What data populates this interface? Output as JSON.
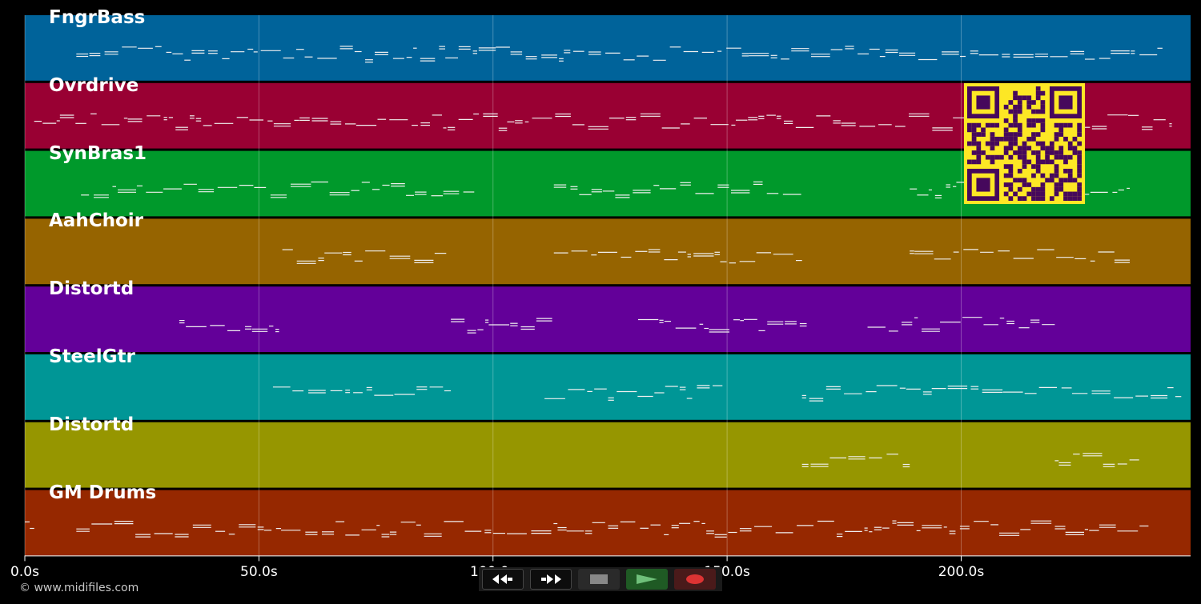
{
  "tracks": [
    {
      "name": "FngrBass",
      "color": "#00639a"
    },
    {
      "name": "Ovrdrive",
      "color": "#990033"
    },
    {
      "name": "SynBras1",
      "color": "#00992b"
    },
    {
      "name": "AahChoir",
      "color": "#966400"
    },
    {
      "name": "Distortd",
      "color": "#630099"
    },
    {
      "name": "SteelGtr",
      "color": "#009696"
    },
    {
      "name": "Distortd",
      "color": "#969600"
    },
    {
      "name": "GM Drums",
      "color": "#962800"
    }
  ],
  "axis": {
    "ticks": [
      {
        "label": "0.0s",
        "value": 0
      },
      {
        "label": "50.0s",
        "value": 50
      },
      {
        "label": "100.0s",
        "value": 100
      },
      {
        "label": "150.0s",
        "value": 150
      },
      {
        "label": "200.0s",
        "value": 200
      }
    ],
    "max_seconds": 249
  },
  "copyright": "© www.midifiles.com",
  "transport": {
    "rewind_icon": "rewind-icon",
    "fast_forward_icon": "fast-forward-icon",
    "stop_icon": "stop-icon",
    "play_icon": "play-icon",
    "record_icon": "record-icon"
  },
  "note_activity": [
    [
      [
        11,
        243
      ]
    ],
    [
      [
        2,
        245
      ]
    ],
    [
      [
        12,
        96
      ],
      [
        113,
        166
      ],
      [
        189,
        236
      ]
    ],
    [
      [
        55,
        90
      ],
      [
        113,
        166
      ],
      [
        189,
        236
      ]
    ],
    [
      [
        33,
        55
      ],
      [
        91,
        113
      ],
      [
        131,
        167
      ],
      [
        180,
        220
      ]
    ],
    [
      [
        53,
        91
      ],
      [
        111,
        149
      ],
      [
        166,
        247
      ]
    ],
    [
      [
        166,
        189
      ],
      [
        220,
        238
      ]
    ],
    [
      [
        0,
        2
      ],
      [
        11,
        240
      ]
    ]
  ],
  "colors": {
    "background": "#000000",
    "qr_fg": "#46085c",
    "qr_bg": "#fde725"
  }
}
